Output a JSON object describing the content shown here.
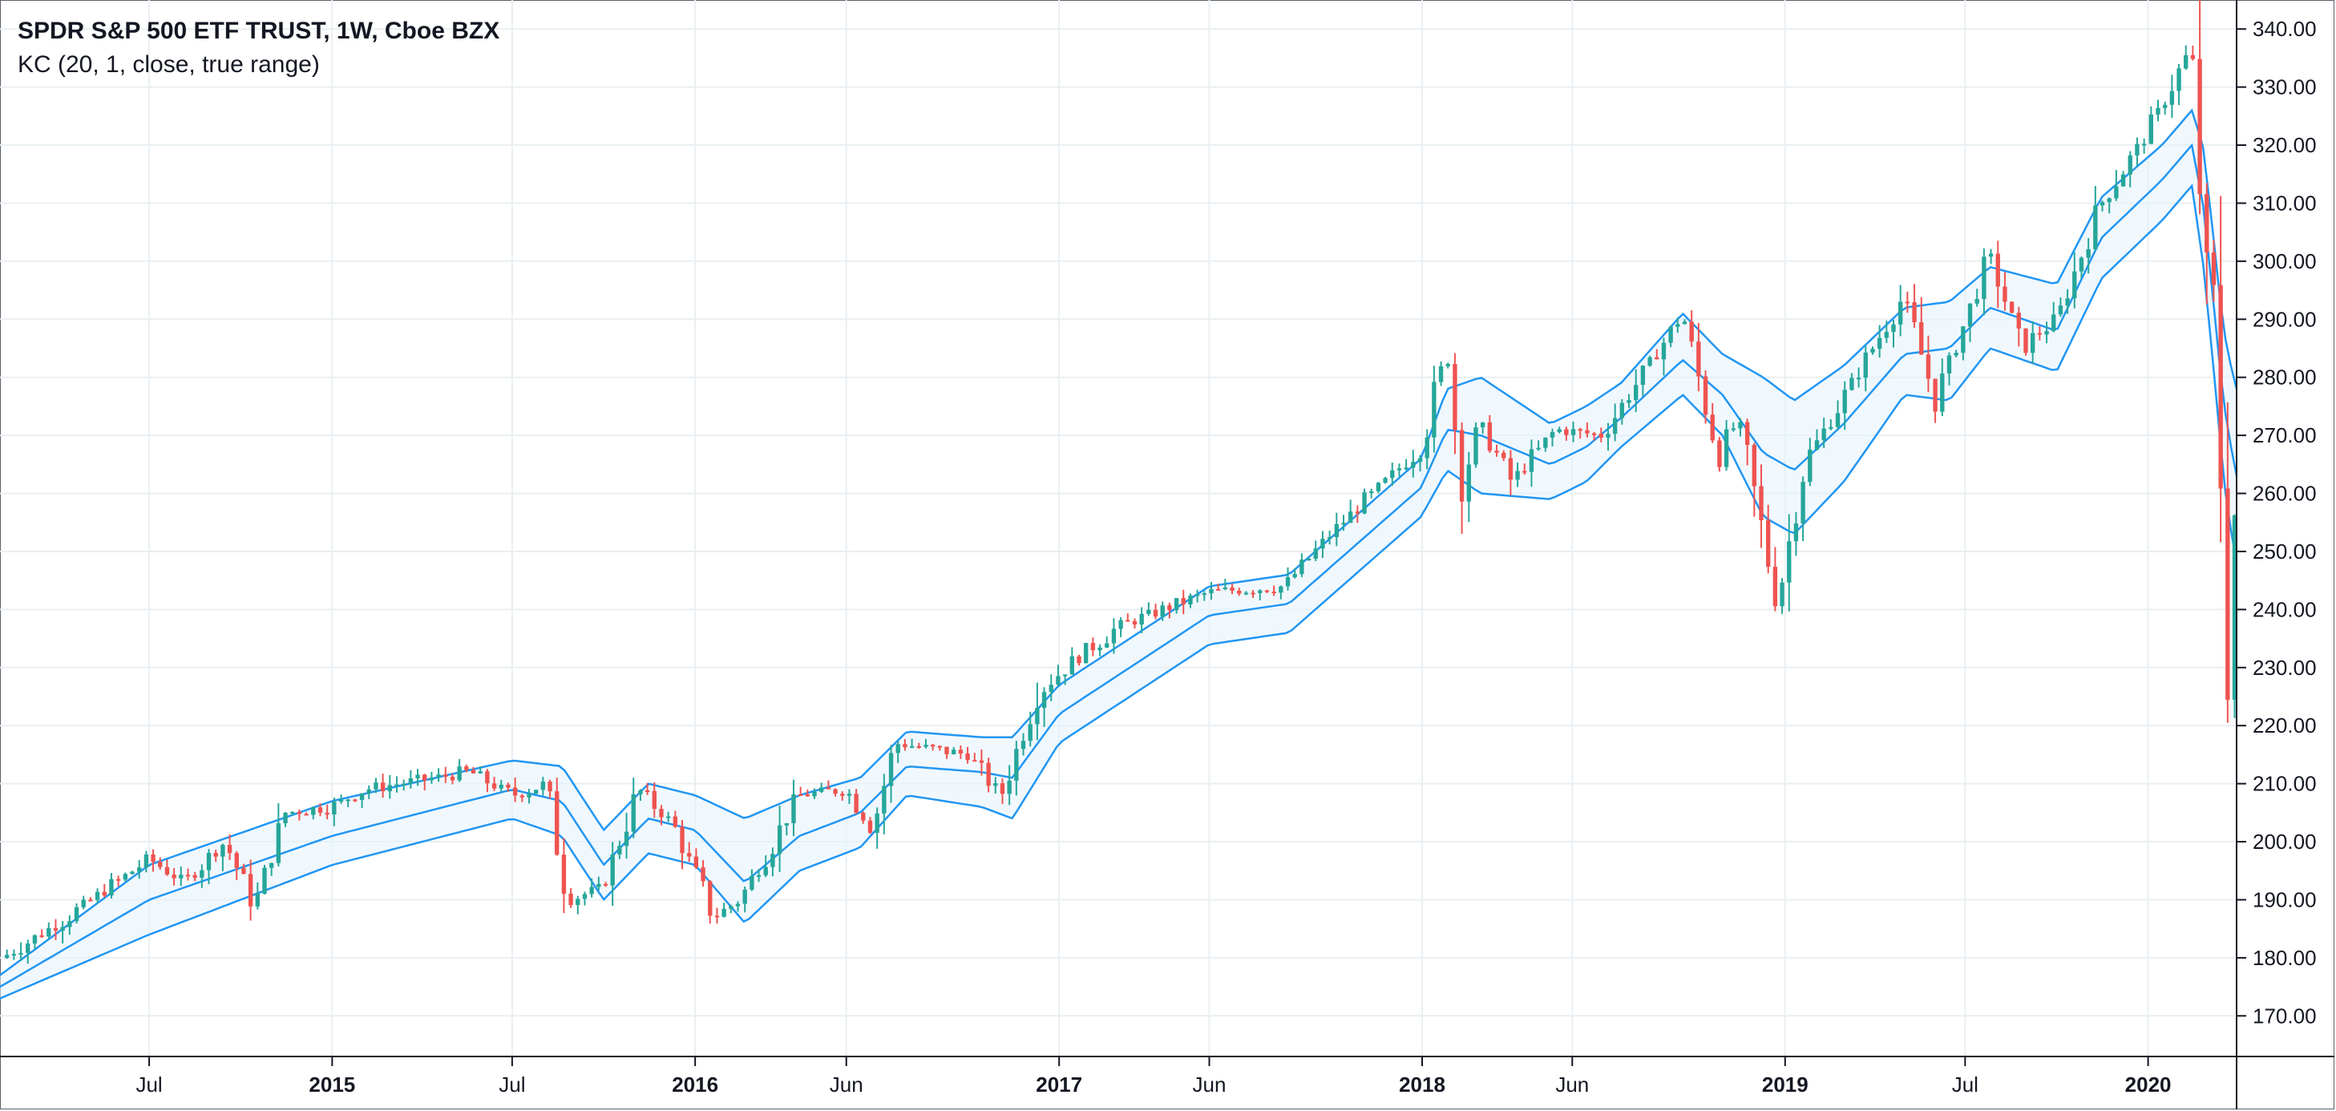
{
  "header": {
    "title": "SPDR S&P 500 ETF TRUST, 1W, Cboe BZX",
    "indicator": "KC (20, 1, close, true range)"
  },
  "colors": {
    "up": "#26a69a",
    "down": "#ef5350",
    "band_line": "#2196f3",
    "band_fill": "#e3f2fd",
    "grid": "#e9eff2",
    "axis": "#131722"
  },
  "chart_data": {
    "type": "candlestick",
    "title": "SPDR S&P 500 ETF TRUST, 1W, Cboe BZX",
    "indicator": "KC (20, 1, close, true range)",
    "ylim": [
      163,
      345
    ],
    "yticks": [
      170,
      180,
      190,
      200,
      210,
      220,
      230,
      240,
      250,
      260,
      270,
      280,
      290,
      300,
      310,
      320,
      330,
      340
    ],
    "ytick_labels": [
      "170.00",
      "180.00",
      "190.00",
      "200.00",
      "210.00",
      "220.00",
      "230.00",
      "240.00",
      "250.00",
      "260.00",
      "270.00",
      "280.00",
      "290.00",
      "300.00",
      "310.00",
      "320.00",
      "330.00",
      "340.00"
    ],
    "xlim": [
      "2014-02-01",
      "2020-03-30"
    ],
    "xticks": [
      {
        "label": "Jul",
        "date": "2014-07-01",
        "year": false
      },
      {
        "label": "2015",
        "date": "2015-01-01",
        "year": true
      },
      {
        "label": "Jul",
        "date": "2015-07-01",
        "year": false
      },
      {
        "label": "2016",
        "date": "2016-01-01",
        "year": true
      },
      {
        "label": "Jun",
        "date": "2016-06-01",
        "year": false
      },
      {
        "label": "2017",
        "date": "2017-01-01",
        "year": true
      },
      {
        "label": "Jun",
        "date": "2017-06-01",
        "year": false
      },
      {
        "label": "2018",
        "date": "2018-01-01",
        "year": true
      },
      {
        "label": "Jun",
        "date": "2018-06-01",
        "year": false
      },
      {
        "label": "2019",
        "date": "2019-01-01",
        "year": true
      },
      {
        "label": "Jul",
        "date": "2019-07-01",
        "year": false
      },
      {
        "label": "2020",
        "date": "2020-01-01",
        "year": true
      }
    ],
    "grid": true,
    "close_anchors": [
      [
        "2014-02-03",
        180
      ],
      [
        "2014-04-01",
        186
      ],
      [
        "2014-07-01",
        197
      ],
      [
        "2014-08-05",
        193
      ],
      [
        "2014-09-15",
        200
      ],
      [
        "2014-10-15",
        189
      ],
      [
        "2014-11-15",
        205
      ],
      [
        "2015-01-01",
        206
      ],
      [
        "2015-02-01",
        209
      ],
      [
        "2015-05-20",
        212
      ],
      [
        "2015-07-01",
        208
      ],
      [
        "2015-08-05",
        210
      ],
      [
        "2015-08-25",
        190
      ],
      [
        "2015-09-30",
        192
      ],
      [
        "2015-11-05",
        209
      ],
      [
        "2015-12-10",
        203
      ],
      [
        "2016-01-20",
        187
      ],
      [
        "2016-02-15",
        190
      ],
      [
        "2016-04-15",
        208
      ],
      [
        "2016-06-01",
        209
      ],
      [
        "2016-06-27",
        202
      ],
      [
        "2016-07-20",
        217
      ],
      [
        "2016-10-01",
        215
      ],
      [
        "2016-11-04",
        208
      ],
      [
        "2016-12-10",
        226
      ],
      [
        "2017-03-01",
        237
      ],
      [
        "2017-06-01",
        243
      ],
      [
        "2017-08-15",
        244
      ],
      [
        "2017-10-01",
        253
      ],
      [
        "2017-12-31",
        268
      ],
      [
        "2018-01-26",
        285
      ],
      [
        "2018-02-09",
        262
      ],
      [
        "2018-03-01",
        272
      ],
      [
        "2018-04-01",
        262
      ],
      [
        "2018-05-15",
        271
      ],
      [
        "2018-07-01",
        270
      ],
      [
        "2018-09-20",
        291
      ],
      [
        "2018-10-26",
        266
      ],
      [
        "2018-11-15",
        273
      ],
      [
        "2018-12-24",
        241
      ],
      [
        "2019-01-20",
        265
      ],
      [
        "2019-04-30",
        294
      ],
      [
        "2019-06-01",
        276
      ],
      [
        "2019-07-26",
        301
      ],
      [
        "2019-08-26",
        285
      ],
      [
        "2019-10-01",
        290
      ],
      [
        "2019-11-15",
        310
      ],
      [
        "2019-12-31",
        322
      ],
      [
        "2020-02-14",
        337
      ],
      [
        "2020-02-28",
        296
      ],
      [
        "2020-03-06",
        298
      ],
      [
        "2020-03-13",
        270
      ],
      [
        "2020-03-20",
        229
      ],
      [
        "2020-03-27",
        254
      ],
      [
        "2020-03-30",
        262
      ]
    ],
    "keltner_upper": [
      [
        "2014-02-01",
        177
      ],
      [
        "2014-07-01",
        196
      ],
      [
        "2015-01-01",
        207
      ],
      [
        "2015-07-01",
        214
      ],
      [
        "2015-08-20",
        213
      ],
      [
        "2015-10-01",
        202
      ],
      [
        "2015-11-15",
        210
      ],
      [
        "2016-01-01",
        208
      ],
      [
        "2016-02-20",
        204
      ],
      [
        "2016-04-15",
        208
      ],
      [
        "2016-06-15",
        211
      ],
      [
        "2016-08-01",
        219
      ],
      [
        "2016-10-15",
        218
      ],
      [
        "2016-11-15",
        218
      ],
      [
        "2017-01-01",
        227
      ],
      [
        "2017-06-01",
        244
      ],
      [
        "2017-08-20",
        246
      ],
      [
        "2017-12-31",
        266
      ],
      [
        "2018-01-26",
        278
      ],
      [
        "2018-03-01",
        280
      ],
      [
        "2018-05-10",
        272
      ],
      [
        "2018-06-15",
        275
      ],
      [
        "2018-07-20",
        279
      ],
      [
        "2018-09-20",
        291
      ],
      [
        "2018-10-30",
        284
      ],
      [
        "2018-12-10",
        280
      ],
      [
        "2019-01-10",
        276
      ],
      [
        "2019-03-01",
        282
      ],
      [
        "2019-05-01",
        292
      ],
      [
        "2019-06-15",
        293
      ],
      [
        "2019-07-26",
        299
      ],
      [
        "2019-10-01",
        296
      ],
      [
        "2019-11-15",
        311
      ],
      [
        "2020-01-15",
        320
      ],
      [
        "2020-02-14",
        326
      ],
      [
        "2020-02-25",
        320
      ],
      [
        "2020-03-05",
        307
      ],
      [
        "2020-03-13",
        294
      ],
      [
        "2020-03-20",
        285
      ],
      [
        "2020-03-30",
        278
      ]
    ],
    "keltner_middle": [
      [
        "2014-02-01",
        175
      ],
      [
        "2014-07-01",
        190
      ],
      [
        "2015-01-01",
        201
      ],
      [
        "2015-07-01",
        209
      ],
      [
        "2015-08-20",
        207
      ],
      [
        "2015-10-01",
        196
      ],
      [
        "2015-11-15",
        204
      ],
      [
        "2016-01-01",
        202
      ],
      [
        "2016-02-20",
        193
      ],
      [
        "2016-04-15",
        201
      ],
      [
        "2016-06-15",
        205
      ],
      [
        "2016-08-01",
        213
      ],
      [
        "2016-10-15",
        212
      ],
      [
        "2016-11-15",
        211
      ],
      [
        "2017-01-01",
        222
      ],
      [
        "2017-06-01",
        239
      ],
      [
        "2017-08-20",
        241
      ],
      [
        "2017-12-31",
        261
      ],
      [
        "2018-01-26",
        271
      ],
      [
        "2018-03-01",
        270
      ],
      [
        "2018-05-10",
        265
      ],
      [
        "2018-06-15",
        268
      ],
      [
        "2018-07-20",
        273
      ],
      [
        "2018-09-20",
        283
      ],
      [
        "2018-10-30",
        277
      ],
      [
        "2018-12-10",
        267
      ],
      [
        "2019-01-10",
        264
      ],
      [
        "2019-03-01",
        272
      ],
      [
        "2019-05-01",
        284
      ],
      [
        "2019-06-15",
        285
      ],
      [
        "2019-07-26",
        292
      ],
      [
        "2019-10-01",
        288
      ],
      [
        "2019-11-15",
        304
      ],
      [
        "2020-01-15",
        314
      ],
      [
        "2020-02-14",
        320
      ],
      [
        "2020-02-25",
        310
      ],
      [
        "2020-03-05",
        296
      ],
      [
        "2020-03-13",
        282
      ],
      [
        "2020-03-20",
        272
      ],
      [
        "2020-03-30",
        263
      ]
    ],
    "keltner_lower": [
      [
        "2014-02-01",
        173
      ],
      [
        "2014-07-01",
        184
      ],
      [
        "2015-01-01",
        196
      ],
      [
        "2015-07-01",
        204
      ],
      [
        "2015-08-20",
        201
      ],
      [
        "2015-10-01",
        190
      ],
      [
        "2015-11-15",
        198
      ],
      [
        "2016-01-01",
        196
      ],
      [
        "2016-02-20",
        186
      ],
      [
        "2016-04-15",
        195
      ],
      [
        "2016-06-15",
        199
      ],
      [
        "2016-08-01",
        208
      ],
      [
        "2016-10-15",
        206
      ],
      [
        "2016-11-15",
        204
      ],
      [
        "2017-01-01",
        217
      ],
      [
        "2017-06-01",
        234
      ],
      [
        "2017-08-20",
        236
      ],
      [
        "2017-12-31",
        256
      ],
      [
        "2018-01-26",
        264
      ],
      [
        "2018-03-01",
        260
      ],
      [
        "2018-05-10",
        259
      ],
      [
        "2018-06-15",
        262
      ],
      [
        "2018-07-20",
        268
      ],
      [
        "2018-09-20",
        277
      ],
      [
        "2018-10-30",
        270
      ],
      [
        "2018-12-10",
        256
      ],
      [
        "2019-01-10",
        253
      ],
      [
        "2019-03-01",
        262
      ],
      [
        "2019-05-01",
        277
      ],
      [
        "2019-06-15",
        276
      ],
      [
        "2019-07-26",
        285
      ],
      [
        "2019-10-01",
        281
      ],
      [
        "2019-11-15",
        297
      ],
      [
        "2020-01-15",
        307
      ],
      [
        "2020-02-14",
        313
      ],
      [
        "2020-02-25",
        300
      ],
      [
        "2020-03-05",
        285
      ],
      [
        "2020-03-13",
        270
      ],
      [
        "2020-03-20",
        258
      ],
      [
        "2020-03-30",
        248
      ]
    ]
  }
}
